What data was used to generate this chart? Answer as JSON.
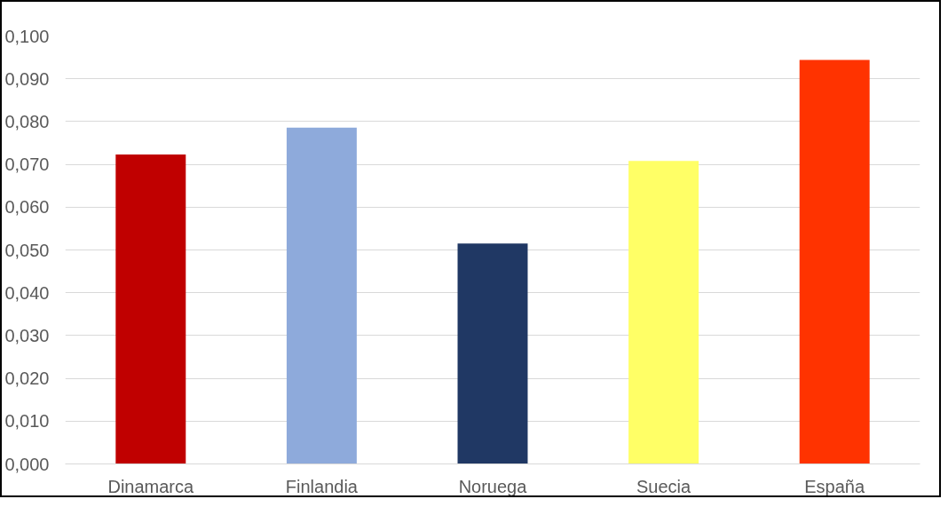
{
  "chart_data": {
    "type": "bar",
    "categories": [
      "Dinamarca",
      "Finlandia",
      "Noruega",
      "Suecia",
      "España"
    ],
    "values": [
      0.0723,
      0.0786,
      0.0515,
      0.0708,
      0.0944
    ],
    "colors": [
      "#c00000",
      "#8eaadb",
      "#203864",
      "#ffff66",
      "#ff3300"
    ],
    "ylim": [
      0,
      0.1
    ],
    "yticks": [
      {
        "value": 0,
        "label": "0,000"
      },
      {
        "value": 0.01,
        "label": "0,010"
      },
      {
        "value": 0.02,
        "label": "0,020"
      },
      {
        "value": 0.03,
        "label": "0,030"
      },
      {
        "value": 0.04,
        "label": "0,040"
      },
      {
        "value": 0.05,
        "label": "0,050"
      },
      {
        "value": 0.06,
        "label": "0,060"
      },
      {
        "value": 0.07,
        "label": "0,070"
      },
      {
        "value": 0.08,
        "label": "0,080"
      },
      {
        "value": 0.09,
        "label": "0,090"
      },
      {
        "value": 0.1,
        "label": "0,100"
      }
    ],
    "grid": "y"
  }
}
